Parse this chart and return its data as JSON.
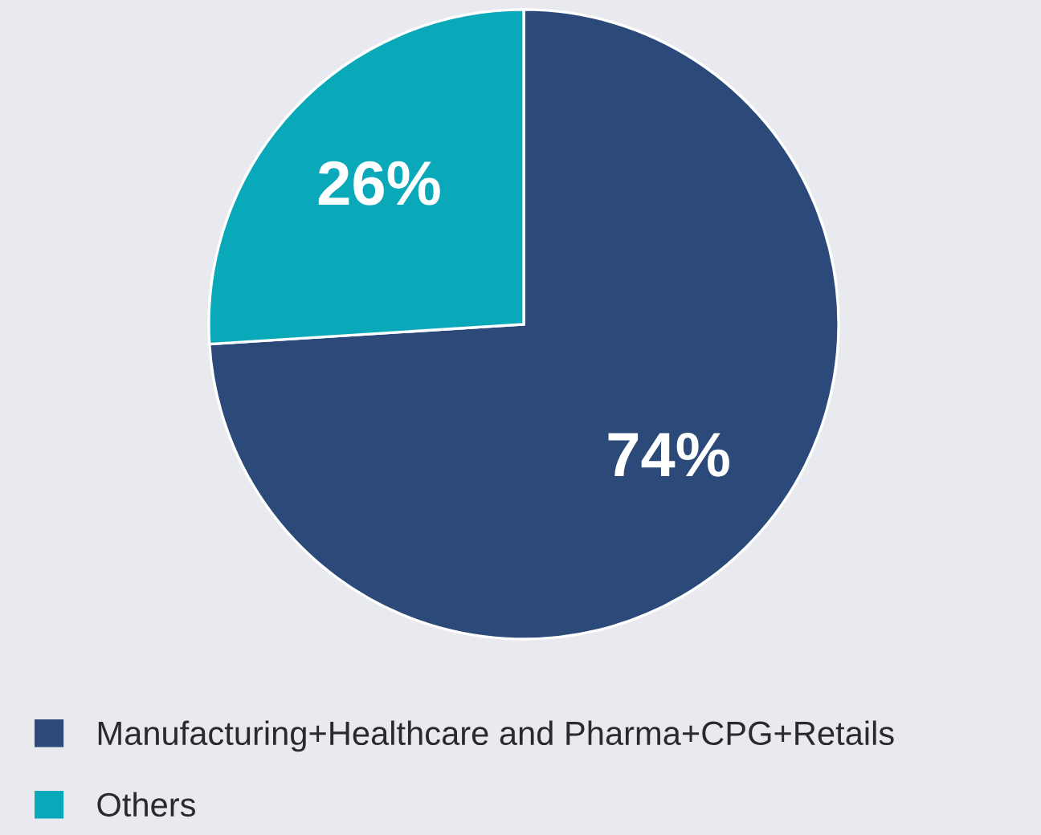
{
  "chart_data": {
    "type": "pie",
    "categories": [
      "Manufacturing+Healthcare and Pharma+CPG+Retails",
      "Others"
    ],
    "values": [
      74,
      26
    ],
    "colors": [
      "#2b4a7a",
      "#0aa9ba"
    ],
    "value_labels": [
      "74%",
      "26%"
    ],
    "legend": "bottom left"
  }
}
